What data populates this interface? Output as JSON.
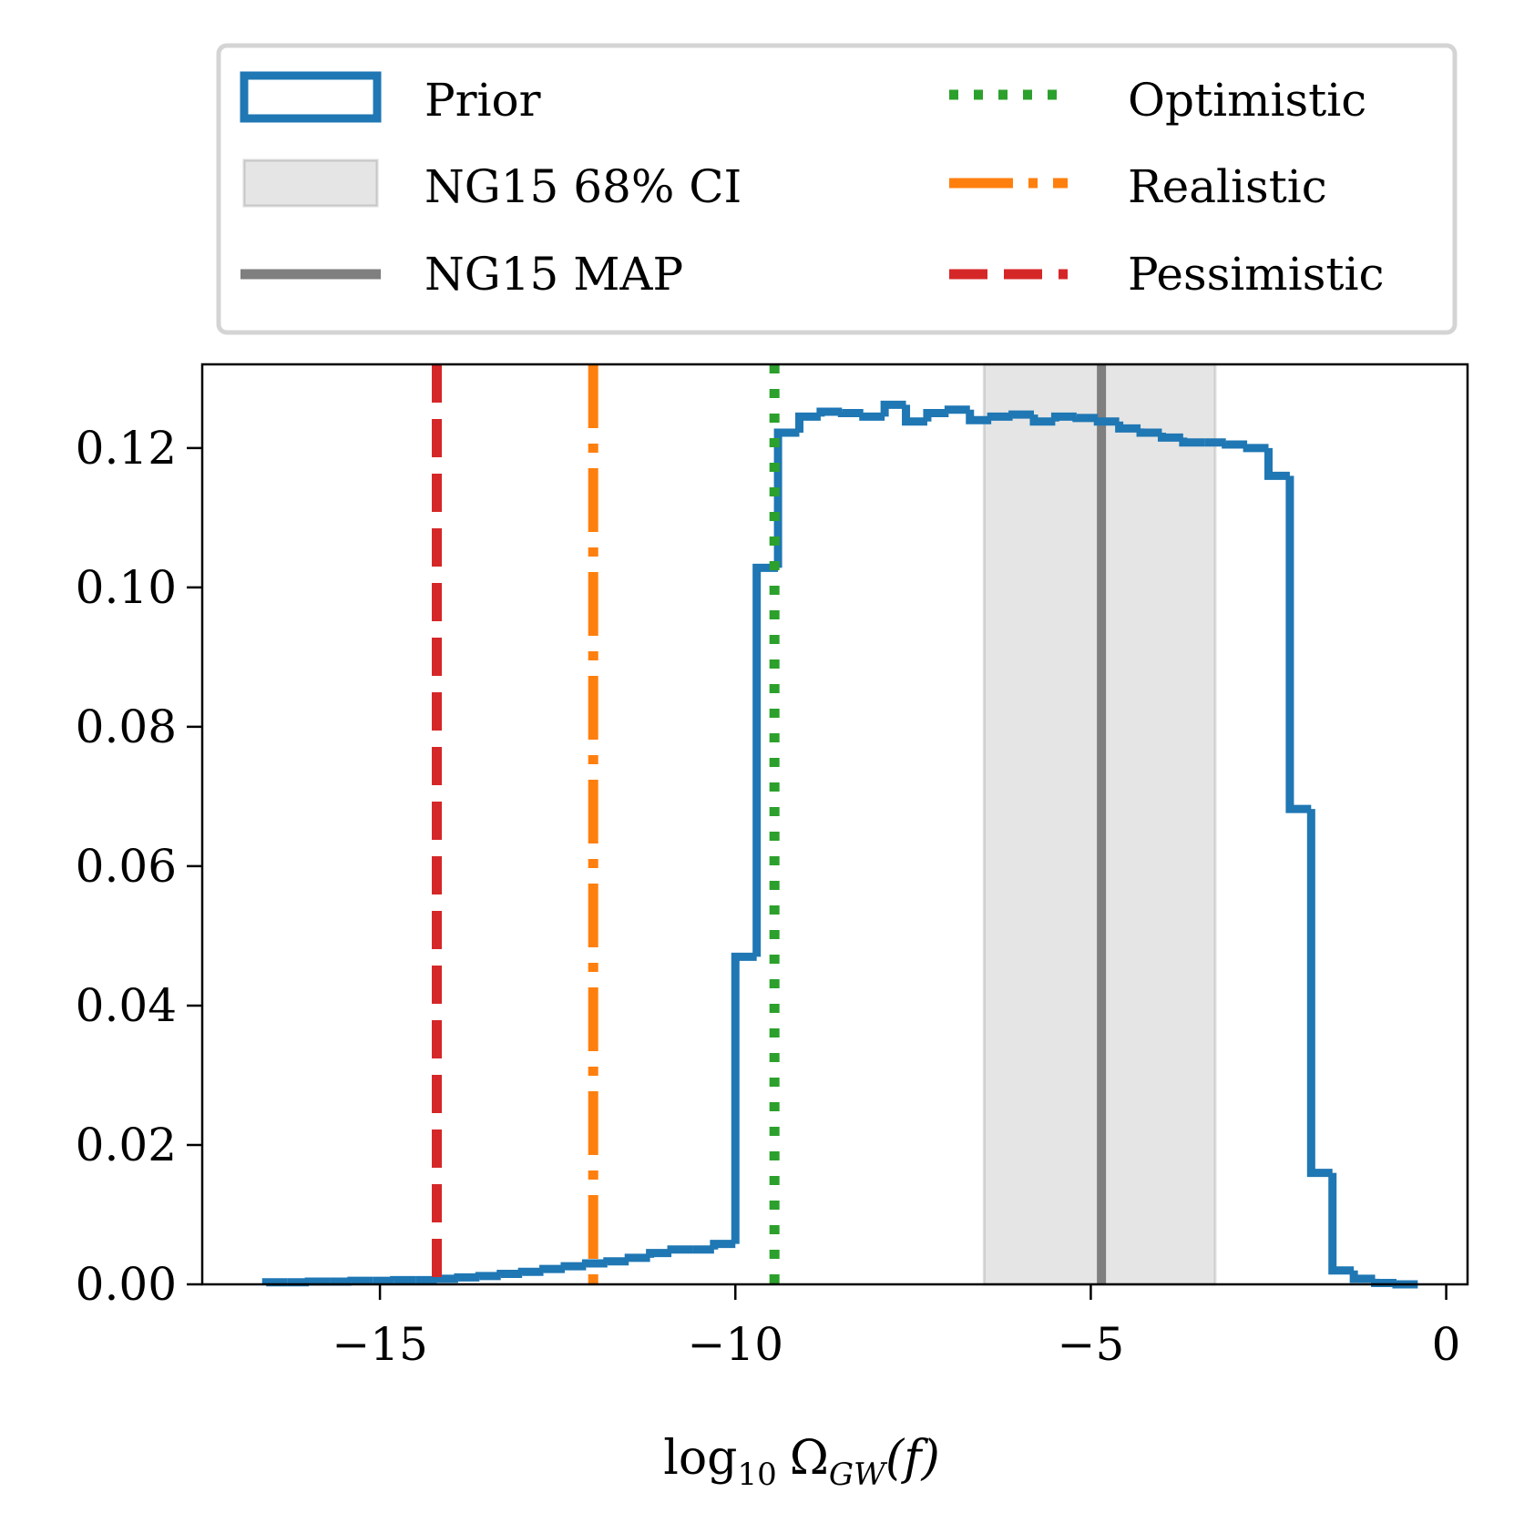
{
  "chart_data": {
    "type": "histogram",
    "xlabel": "log₁₀ Ω_GW(f)",
    "xlabel_parts": {
      "log": "log",
      "sub10": "10",
      "omega": "Ω",
      "subGW": "GW",
      "arg": "(f)"
    },
    "ylabel": "",
    "xlim": [
      -17.5,
      0.3
    ],
    "ylim": [
      0.0,
      0.132
    ],
    "xticks": [
      {
        "value": -15,
        "label": "−15"
      },
      {
        "value": -10,
        "label": "−10"
      },
      {
        "value": -5,
        "label": "−5"
      },
      {
        "value": 0,
        "label": "0"
      }
    ],
    "yticks": [
      {
        "value": 0.0,
        "label": "0.00"
      },
      {
        "value": 0.02,
        "label": "0.02"
      },
      {
        "value": 0.04,
        "label": "0.04"
      },
      {
        "value": 0.06,
        "label": "0.06"
      },
      {
        "value": 0.08,
        "label": "0.08"
      },
      {
        "value": 0.1,
        "label": "0.10"
      },
      {
        "value": 0.12,
        "label": "0.12"
      }
    ],
    "histogram": {
      "name": "Prior",
      "color": "#1f77b4",
      "bin_edges": [
        -16.6,
        -16.3,
        -16.0,
        -15.7,
        -15.4,
        -15.1,
        -14.8,
        -14.5,
        -14.2,
        -13.9,
        -13.6,
        -13.3,
        -13.0,
        -12.7,
        -12.4,
        -12.1,
        -11.8,
        -11.5,
        -11.2,
        -10.9,
        -10.6,
        -10.3,
        -10.0,
        -9.7,
        -9.4,
        -9.1,
        -8.8,
        -8.5,
        -8.2,
        -7.9,
        -7.6,
        -7.3,
        -7.0,
        -6.7,
        -6.4,
        -6.1,
        -5.8,
        -5.5,
        -5.2,
        -4.9,
        -4.6,
        -4.3,
        -4.0,
        -3.7,
        -3.4,
        -3.1,
        -2.8,
        -2.5,
        -2.2,
        -1.9,
        -1.6,
        -1.3,
        -1.0,
        -0.7,
        -0.4
      ],
      "values": [
        0.0003,
        0.0003,
        0.0004,
        0.0004,
        0.0005,
        0.0005,
        0.0006,
        0.0006,
        0.0008,
        0.001,
        0.0012,
        0.0015,
        0.0018,
        0.0022,
        0.0026,
        0.003,
        0.0033,
        0.0038,
        0.0045,
        0.005,
        0.005,
        0.0058,
        0.047,
        0.1028,
        0.1222,
        0.1245,
        0.1252,
        0.125,
        0.1245,
        0.1262,
        0.1238,
        0.125,
        0.1255,
        0.124,
        0.1245,
        0.1248,
        0.1238,
        0.1245,
        0.1243,
        0.1238,
        0.1228,
        0.1222,
        0.1215,
        0.1208,
        0.1208,
        0.1205,
        0.12,
        0.116,
        0.0682,
        0.016,
        0.002,
        0.0008,
        0.0002,
        0.0
      ]
    },
    "ci_band": {
      "name": "NG15 68% CI",
      "x0": -6.5,
      "x1": -3.25,
      "color": "#7f7f7f"
    },
    "map_line": {
      "name": "NG15 MAP",
      "x": -4.85,
      "color": "#7f7f7f"
    },
    "scenarios": [
      {
        "name": "Optimistic",
        "x": -9.45,
        "color": "#2ca02c",
        "style": "dotted"
      },
      {
        "name": "Realistic",
        "x": -12.0,
        "color": "#ff7f0e",
        "style": "dashdot"
      },
      {
        "name": "Pessimistic",
        "x": -14.2,
        "color": "#d62728",
        "style": "dashed"
      }
    ],
    "legend": {
      "position": "above",
      "entries": [
        "Prior",
        "NG15 68% CI",
        "NG15 MAP",
        "Optimistic",
        "Realistic",
        "Pessimistic"
      ]
    }
  }
}
